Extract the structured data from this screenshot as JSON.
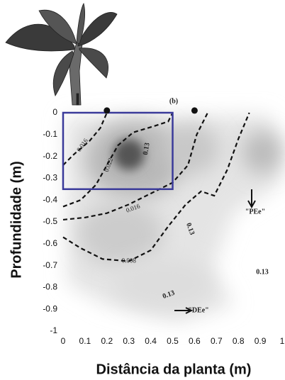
{
  "chart_data": {
    "type": "contour",
    "x_label": "Distância da planta (m)",
    "y_label": "Profundidade (m)",
    "xlim": [
      0,
      1
    ],
    "ylim": [
      -1,
      0
    ],
    "xticks": [
      0,
      0.1,
      0.2,
      0.3,
      0.4,
      0.5,
      0.6,
      0.7,
      0.8,
      0.9,
      1
    ],
    "yticks": [
      0,
      -0.1,
      -0.2,
      -0.3,
      -0.4,
      -0.5,
      -0.6,
      -0.7,
      -0.8,
      -0.9,
      -1
    ],
    "series": [
      {
        "level": 0.016,
        "color": "#111111",
        "x": [
          0,
          0.05,
          0.12,
          0.17,
          0.2
        ],
        "y": [
          -0.24,
          -0.19,
          -0.13,
          -0.07,
          0
        ]
      },
      {
        "level": 0.022,
        "color": "#111111",
        "x": [
          0,
          0.08,
          0.15,
          0.2,
          0.25,
          0.32,
          0.42,
          0.48,
          0.5
        ],
        "y": [
          -0.43,
          -0.4,
          -0.33,
          -0.24,
          -0.15,
          -0.09,
          -0.06,
          -0.04,
          0
        ]
      },
      {
        "level": 0.016,
        "color": "#111111",
        "x": [
          0,
          0.1,
          0.2,
          0.3,
          0.4,
          0.5,
          0.57,
          0.61,
          0.66
        ],
        "y": [
          -0.49,
          -0.48,
          -0.46,
          -0.42,
          -0.37,
          -0.32,
          -0.24,
          -0.1,
          0
        ]
      },
      {
        "level": 0.008,
        "color": "#111111",
        "x": [
          0,
          0.08,
          0.18,
          0.3,
          0.4,
          0.48,
          0.56,
          0.63,
          0.69,
          0.75,
          0.8,
          0.85
        ],
        "y": [
          -0.57,
          -0.62,
          -0.67,
          -0.68,
          -0.63,
          -0.52,
          -0.42,
          -0.36,
          -0.38,
          -0.26,
          -0.12,
          0
        ]
      }
    ],
    "box_xlim": [
      0,
      0.5
    ],
    "box_ylim": [
      -0.35,
      0
    ],
    "box_color": "#3a3a9a",
    "points": {
      "x": [
        0.2,
        0.6
      ],
      "y": [
        0.01,
        0.01
      ]
    },
    "annotations": [
      "(b)",
      "0.13",
      "0.13",
      "0.13",
      "0.13",
      "\"PEe\"",
      "\"DEe\""
    ]
  }
}
